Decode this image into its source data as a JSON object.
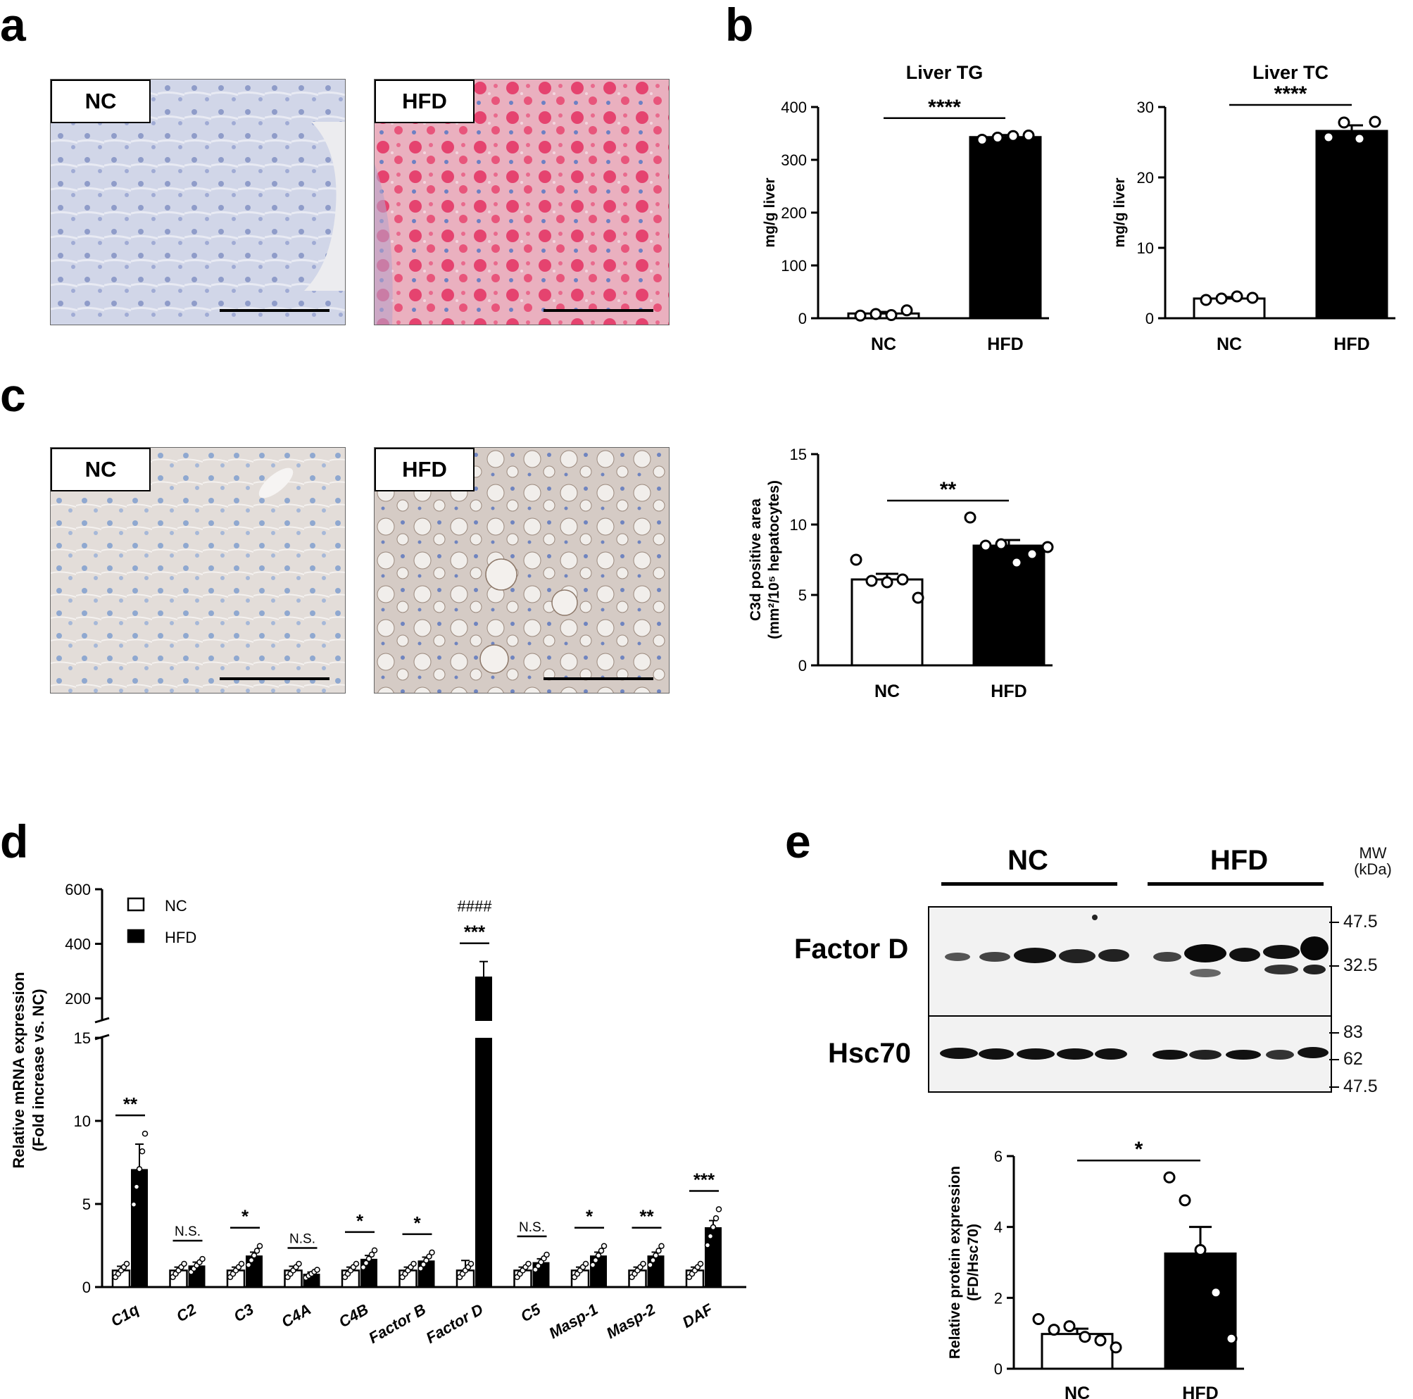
{
  "panels": {
    "a": {
      "label": "a",
      "tags": [
        "NC",
        "HFD"
      ]
    },
    "b": {
      "label": "b"
    },
    "c": {
      "label": "c",
      "tags": [
        "NC",
        "HFD"
      ]
    },
    "d": {
      "label": "d"
    },
    "e": {
      "label": "e"
    }
  },
  "western": {
    "groups": [
      "NC",
      "HFD"
    ],
    "mw_header": [
      "MW",
      "(kDa)"
    ],
    "blots": [
      {
        "label": "Factor D",
        "markers": [
          "47.5",
          "32.5"
        ]
      },
      {
        "label": "Hsc70",
        "markers": [
          "83",
          "62",
          "47.5"
        ]
      }
    ]
  },
  "chart_data": [
    {
      "id": "liver-tg",
      "type": "bar",
      "title": "Liver TG",
      "ylabel": "mg/g liver",
      "categories": [
        "NC",
        "HFD"
      ],
      "values": [
        9,
        343
      ],
      "errors": [
        3,
        4
      ],
      "ylim": [
        0,
        400
      ],
      "yticks": [
        0,
        100,
        200,
        300,
        400
      ],
      "points": [
        [
          5,
          8,
          6,
          15
        ],
        [
          338,
          342,
          345,
          346
        ]
      ],
      "significance": "****",
      "colors": [
        "#ffffff",
        "#000000"
      ]
    },
    {
      "id": "liver-tc",
      "type": "bar",
      "title": "Liver TC",
      "ylabel": "mg/g liver",
      "categories": [
        "NC",
        "HFD"
      ],
      "values": [
        2.8,
        26.6
      ],
      "errors": [
        0.2,
        0.8
      ],
      "ylim": [
        0,
        30
      ],
      "yticks": [
        0,
        10,
        20,
        30
      ],
      "points": [
        [
          2.6,
          2.8,
          3.1,
          2.9
        ],
        [
          25.7,
          27.8,
          25.5,
          27.9
        ]
      ],
      "significance": "****",
      "colors": [
        "#ffffff",
        "#000000"
      ]
    },
    {
      "id": "c3d-area",
      "type": "bar",
      "ylabel": [
        "C3d positive area",
        "(mm²/10⁵ hepatocytes)"
      ],
      "categories": [
        "NC",
        "HFD"
      ],
      "values": [
        6.1,
        8.5
      ],
      "errors": [
        0.4,
        0.4
      ],
      "ylim": [
        0,
        15
      ],
      "yticks": [
        0,
        5,
        10,
        15
      ],
      "points": [
        [
          7.5,
          6.0,
          5.9,
          6.1,
          4.8
        ],
        [
          10.5,
          8.5,
          8.6,
          7.3,
          7.9,
          8.4
        ]
      ],
      "significance": "**",
      "colors": [
        "#ffffff",
        "#000000"
      ]
    },
    {
      "id": "mrna-expression",
      "type": "bar",
      "ylabel": [
        "Relative mRNA expression",
        "(Fold increase vs. NC)"
      ],
      "categories": [
        "C1q",
        "C2",
        "C3",
        "C4A",
        "C4B",
        "Factor B",
        "Factor D",
        "C5",
        "Masp-1",
        "Masp-2",
        "DAF"
      ],
      "series": [
        {
          "name": "NC",
          "values": [
            1.0,
            1.0,
            1.0,
            1.0,
            1.0,
            1.0,
            1.0,
            1.0,
            1.0,
            1.0,
            1.0
          ],
          "errors": [
            0.25,
            0.2,
            0.2,
            0.25,
            0.2,
            0.2,
            0.6,
            0.2,
            0.2,
            0.2,
            0.2
          ]
        },
        {
          "name": "HFD",
          "values": [
            7.1,
            1.3,
            1.9,
            0.8,
            1.7,
            1.6,
            280,
            1.5,
            1.9,
            1.9,
            3.6
          ],
          "errors": [
            1.5,
            0.2,
            0.2,
            0.1,
            0.2,
            0.2,
            55,
            0.2,
            0.2,
            0.2,
            0.4
          ]
        }
      ],
      "yticks_lower": [
        0,
        5,
        10,
        15
      ],
      "yticks_upper": [
        200,
        400,
        600
      ],
      "axis_break": [
        15,
        100
      ],
      "significance": [
        "**",
        "N.S.",
        "*",
        "N.S.",
        "*",
        "*",
        "***",
        "N.S.",
        "*",
        "**",
        "***"
      ],
      "extra_annotation": {
        "category": "Factor D",
        "text": "####"
      },
      "legend": [
        "NC",
        "HFD"
      ],
      "legend_position": "top-left"
    },
    {
      "id": "protein-expression",
      "type": "bar",
      "ylabel": [
        "Relative protein expression",
        "(FD/Hsc70)"
      ],
      "categories": [
        "NC",
        "HFD"
      ],
      "values": [
        0.98,
        3.25
      ],
      "errors": [
        0.15,
        0.75
      ],
      "ylim": [
        0,
        6
      ],
      "yticks": [
        0,
        2,
        4,
        6
      ],
      "points": [
        [
          1.4,
          1.1,
          1.2,
          0.9,
          0.8,
          0.6
        ],
        [
          5.4,
          4.75,
          3.35,
          2.15,
          0.85
        ]
      ],
      "significance": "*",
      "colors": [
        "#ffffff",
        "#000000"
      ]
    }
  ]
}
